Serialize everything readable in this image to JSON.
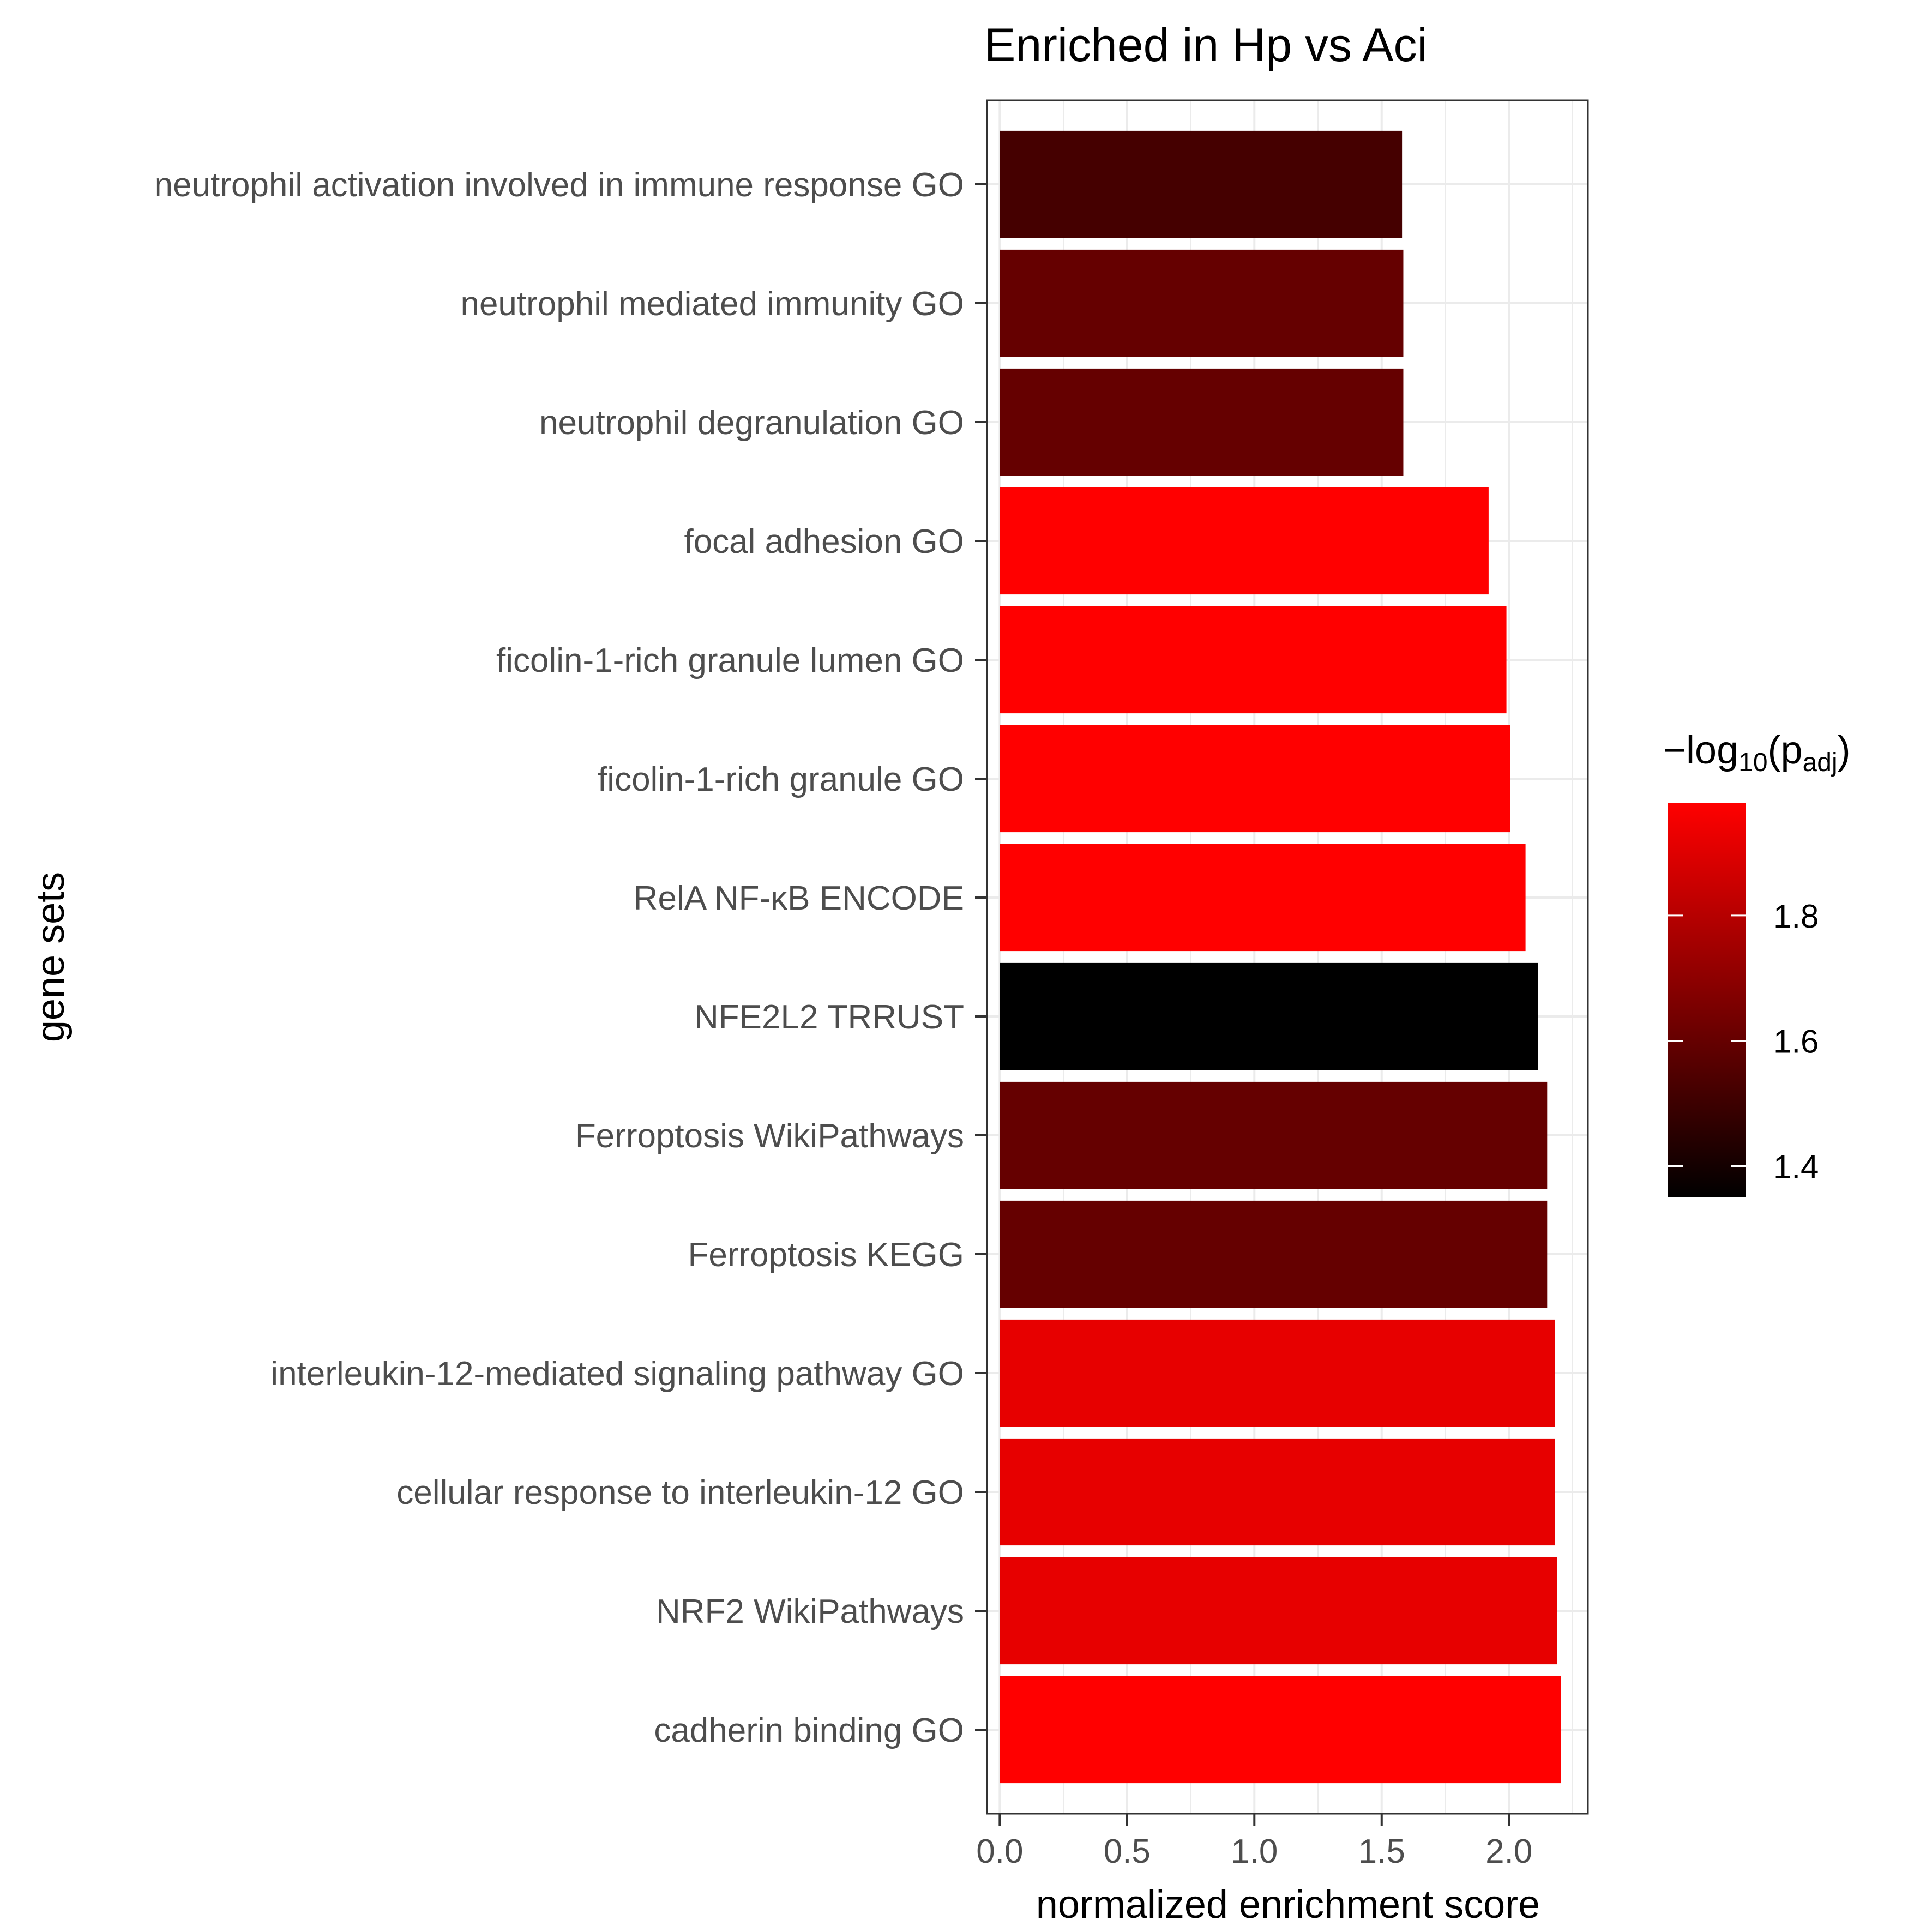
{
  "chart_data": {
    "type": "bar",
    "orientation": "horizontal",
    "title": "Enriched in Hp vs Aci",
    "xlabel": "normalized enrichment score",
    "ylabel": "gene sets",
    "xlim": [
      -0.05,
      2.31
    ],
    "x_ticks": [
      "0.0",
      "0.5",
      "1.0",
      "1.5",
      "2.0"
    ],
    "grid": true,
    "categories": [
      "neutrophil activation involved in immune response GO",
      "neutrophil mediated immunity GO",
      "neutrophil degranulation GO",
      "focal adhesion GO",
      "ficolin-1-rich granule lumen GO",
      "ficolin-1-rich granule GO",
      "RelA NF-κB ENCODE ",
      "NFE2L2 TRRUST",
      "Ferroptosis WikiPathways",
      "Ferroptosis KEGG",
      "interleukin-12-mediated signaling pathway GO",
      "cellular response to interleukin-12 GO",
      "NRF2 WikiPathways",
      "cadherin binding GO"
    ],
    "values": [
      1.58,
      1.585,
      1.585,
      1.92,
      1.99,
      2.005,
      2.065,
      2.115,
      2.15,
      2.15,
      2.18,
      2.18,
      2.19,
      2.205
    ],
    "color_values": [
      1.52,
      1.6,
      1.6,
      1.98,
      1.98,
      1.98,
      1.98,
      1.35,
      1.6,
      1.6,
      1.92,
      1.92,
      1.92,
      1.98
    ],
    "color_scale": {
      "title_prefix": "−",
      "title_main": "log",
      "title_sub": "10",
      "title_open": "(p",
      "title_sub2": "adj",
      "title_close": ")",
      "min": 1.35,
      "max": 1.98,
      "low_color": "#000000",
      "high_color": "#ff0000",
      "ticks": [
        1.4,
        1.6,
        1.8
      ],
      "tick_labels": [
        "1.4",
        "1.6",
        "1.8"
      ],
      "placement": "right"
    }
  }
}
